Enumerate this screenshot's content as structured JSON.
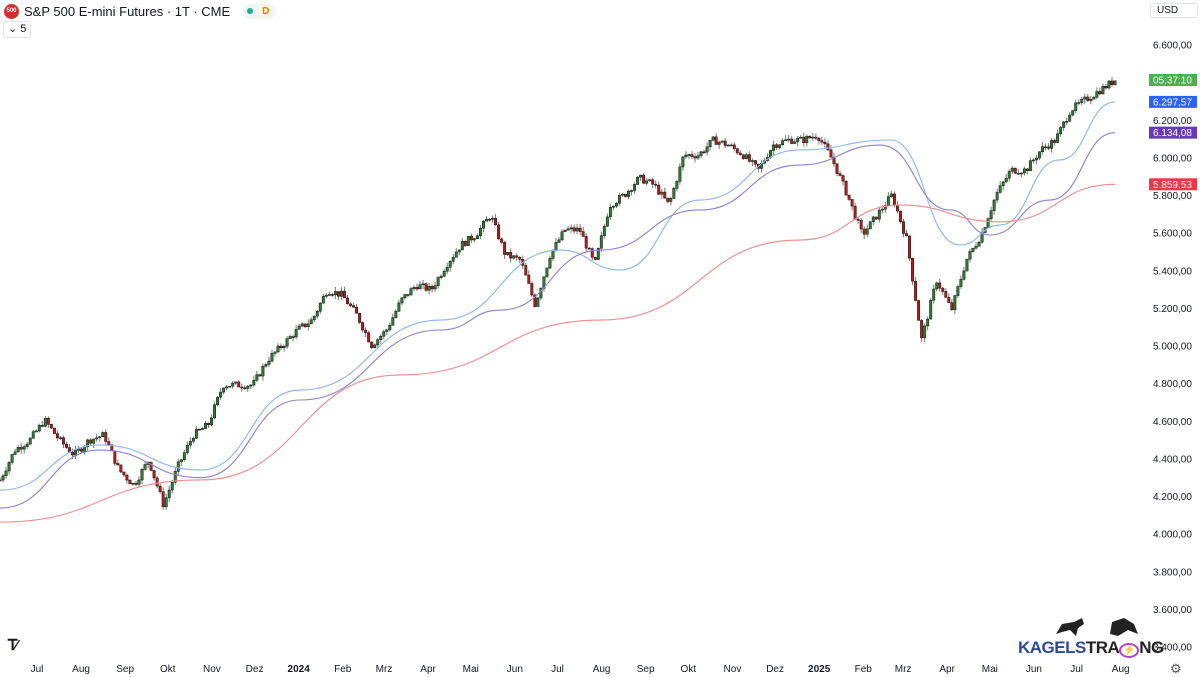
{
  "header": {
    "symbol_badge": "500",
    "title": "S&P 500 E-mini Futures · 1T · CME",
    "session_letter": "D",
    "collapse_label": "5",
    "currency": "USD"
  },
  "watermark": {
    "brand": "KAGELSTRADING",
    "brand_part1": "KAGELS",
    "brand_part2": "TRA",
    "brand_part3": "NG"
  },
  "icons": {
    "collapse": "chevron-down-icon",
    "settings": "gear-icon",
    "logo": "tradingview-logo-icon"
  },
  "colors": {
    "up": "#2e7d32",
    "down": "#b71c1c",
    "ma_fast": "#8ab4f8",
    "ma_mid": "#8c7fd6",
    "ma_slow": "#f28b8b",
    "countdown": "#4caf50",
    "label_fast": "#2962ff",
    "label_mid": "#673ab7",
    "label_slow": "#f23645"
  },
  "price_labels": {
    "countdown": "05:37:10",
    "ma_fast": "6.297,57",
    "ma_mid": "6.134,08",
    "ma_slow": "5.859,53"
  },
  "chart_data": {
    "type": "candlestick",
    "x_range": [
      "2023-06-05",
      "2025-07-28"
    ],
    "ylim": [
      3400,
      6600
    ],
    "y_ticks": [
      3400,
      3600,
      3800,
      4000,
      4200,
      4400,
      4600,
      4800,
      5000,
      5200,
      5400,
      5600,
      5800,
      6000,
      6200,
      6400,
      6600
    ],
    "y_tick_labels": [
      "3.400,00",
      "3.600,00",
      "3.800,00",
      "4.000,00",
      "4.200,00",
      "4.400,00",
      "4.600,00",
      "4.800,00",
      "5.000,00",
      "5.200,00",
      "5.400,00",
      "5.600,00",
      "5.800,00",
      "6.000,00",
      "6.200,00",
      "6.400,00",
      "6.600,00"
    ],
    "x_ticks": [
      {
        "date": "2023-07-01",
        "label": "Jul"
      },
      {
        "date": "2023-08-01",
        "label": "Aug"
      },
      {
        "date": "2023-09-01",
        "label": "Sep"
      },
      {
        "date": "2023-10-01",
        "label": "Okt"
      },
      {
        "date": "2023-11-01",
        "label": "Nov"
      },
      {
        "date": "2023-12-01",
        "label": "Dez"
      },
      {
        "date": "2024-01-01",
        "label": "2024",
        "bold": true
      },
      {
        "date": "2024-02-01",
        "label": "Feb"
      },
      {
        "date": "2024-03-01",
        "label": "Mrz"
      },
      {
        "date": "2024-04-01",
        "label": "Apr"
      },
      {
        "date": "2024-05-01",
        "label": "Mai"
      },
      {
        "date": "2024-06-01",
        "label": "Jun"
      },
      {
        "date": "2024-07-01",
        "label": "Jul"
      },
      {
        "date": "2024-08-01",
        "label": "Aug"
      },
      {
        "date": "2024-09-01",
        "label": "Sep"
      },
      {
        "date": "2024-10-01",
        "label": "Okt"
      },
      {
        "date": "2024-11-01",
        "label": "Nov"
      },
      {
        "date": "2024-12-01",
        "label": "Dez"
      },
      {
        "date": "2025-01-01",
        "label": "2025",
        "bold": true
      },
      {
        "date": "2025-02-01",
        "label": "Feb"
      },
      {
        "date": "2025-03-01",
        "label": "Mrz"
      },
      {
        "date": "2025-04-01",
        "label": "Apr"
      },
      {
        "date": "2025-05-01",
        "label": "Mai"
      },
      {
        "date": "2025-06-01",
        "label": "Jun"
      },
      {
        "date": "2025-07-01",
        "label": "Jul"
      },
      {
        "date": "2025-08-01",
        "label": "Aug"
      }
    ],
    "closes": [
      4288,
      4447,
      4500,
      4606,
      4500,
      4420,
      4500,
      4527,
      4341,
      4261,
      4394,
      4155,
      4367,
      4527,
      4580,
      4793,
      4793,
      4793,
      4926,
      5005,
      5085,
      5138,
      5298,
      5271,
      5165,
      5005,
      5085,
      5245,
      5324,
      5298,
      5430,
      5537,
      5590,
      5696,
      5484,
      5457,
      5218,
      5484,
      5617,
      5617,
      5430,
      5749,
      5803,
      5893,
      5856,
      5749,
      6015,
      6015,
      6095,
      6068,
      6015,
      5935,
      6068,
      6095,
      6095,
      6122,
      5989,
      5803,
      5590,
      5696,
      5803,
      5563,
      5032,
      5351,
      5191,
      5457,
      5590,
      5803,
      5935,
      5935,
      6042,
      6095,
      6254,
      6308,
      6360,
      6414
    ],
    "closes_x_px_note_free": true,
    "moving_averages": [
      {
        "name": "fast",
        "color": "#8ab4f8",
        "points": [
          [
            "2023-06-05",
            4234
          ],
          [
            "2023-08-14",
            4474
          ],
          [
            "2023-10-24",
            4341
          ],
          [
            "2024-01-02",
            4766
          ],
          [
            "2024-04-10",
            5138
          ],
          [
            "2024-07-03",
            5510
          ],
          [
            "2024-08-14",
            5404
          ],
          [
            "2024-10-09",
            5776
          ],
          [
            "2024-12-18",
            6042
          ],
          [
            "2025-02-20",
            6095
          ],
          [
            "2025-04-10",
            5537
          ],
          [
            "2025-05-08",
            5643
          ],
          [
            "2025-06-19",
            5989
          ],
          [
            "2025-07-28",
            6297.57
          ]
        ]
      },
      {
        "name": "mid",
        "color": "#8c7fd6",
        "points": [
          [
            "2023-06-05",
            4139
          ],
          [
            "2023-08-14",
            4447
          ],
          [
            "2023-10-24",
            4300
          ],
          [
            "2024-01-02",
            4713
          ],
          [
            "2024-04-10",
            5085
          ],
          [
            "2024-05-22",
            5191
          ],
          [
            "2024-07-31",
            5510
          ],
          [
            "2024-10-09",
            5723
          ],
          [
            "2024-12-18",
            5962
          ],
          [
            "2025-02-13",
            6068
          ],
          [
            "2025-04-03",
            5723
          ],
          [
            "2025-05-01",
            5590
          ],
          [
            "2025-06-12",
            5776
          ],
          [
            "2025-07-28",
            6134.08
          ]
        ]
      },
      {
        "name": "slow",
        "color": "#f28b8b",
        "points": [
          [
            "2023-06-05",
            4064
          ],
          [
            "2023-10-24",
            4288
          ],
          [
            "2024-03-12",
            4846
          ],
          [
            "2024-07-31",
            5138
          ],
          [
            "2024-12-18",
            5563
          ],
          [
            "2025-02-27",
            5749
          ],
          [
            "2025-05-08",
            5660
          ],
          [
            "2025-07-28",
            5859.53
          ]
        ]
      }
    ]
  }
}
